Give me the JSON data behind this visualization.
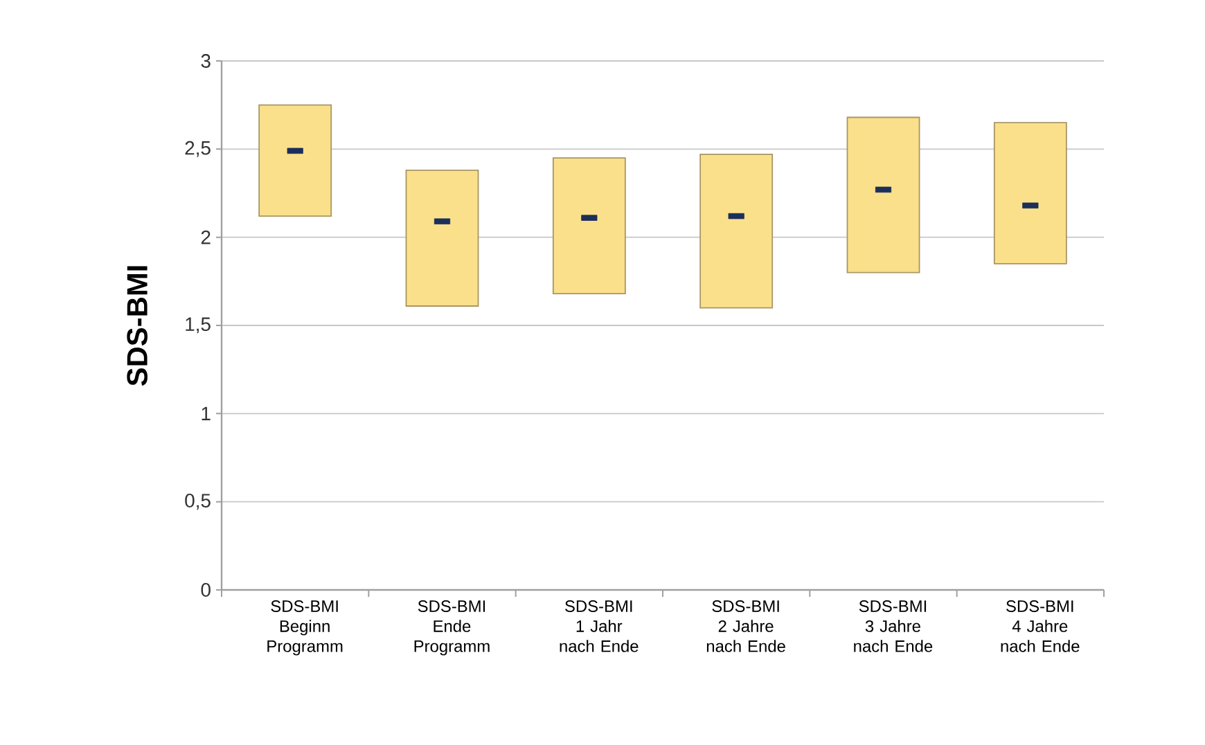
{
  "chart_data": {
    "type": "bar",
    "ylabel": "SDS-BMI",
    "categories": [
      "SDS-BMI Beginn Programm",
      "SDS-BMI Ende Programm",
      "SDS-BMI 1 Jahr nach Ende",
      "SDS-BMI 2 Jahre nach Ende",
      "SDS-BMI 3 Jahre nach Ende",
      "SDS-BMI 4 Jahre nach Ende"
    ],
    "ylim": [
      0,
      3
    ],
    "yticks": [
      0,
      {
        "value": 0.5,
        "label": "0,5"
      },
      1,
      {
        "value": 1.5,
        "label": "1,5"
      },
      2,
      {
        "value": 2.5,
        "label": "2,5"
      },
      3
    ],
    "grid": "y",
    "series": [
      {
        "type": "bar",
        "color": "#fbe08c",
        "base": [
          2.12,
          1.61,
          1.68,
          1.6,
          1.8,
          1.85
        ],
        "values": [
          0.63,
          0.77,
          0.77,
          0.87,
          0.88,
          0.8
        ]
      },
      {
        "type": "scatter",
        "color": "#1b2f5a",
        "marker": "square",
        "x": [
          "SDS-BMI Beginn Programm",
          "SDS-BMI Ende Programm",
          "SDS-BMI 1 Jahr nach Ende",
          "SDS-BMI 2 Jahre nach Ende",
          "SDS-BMI 3 Jahre nach Ende",
          "SDS-BMI 4 Jahre nach Ende"
        ],
        "values": [
          2.49,
          2.09,
          2.11,
          2.12,
          2.27,
          2.18
        ]
      }
    ]
  }
}
